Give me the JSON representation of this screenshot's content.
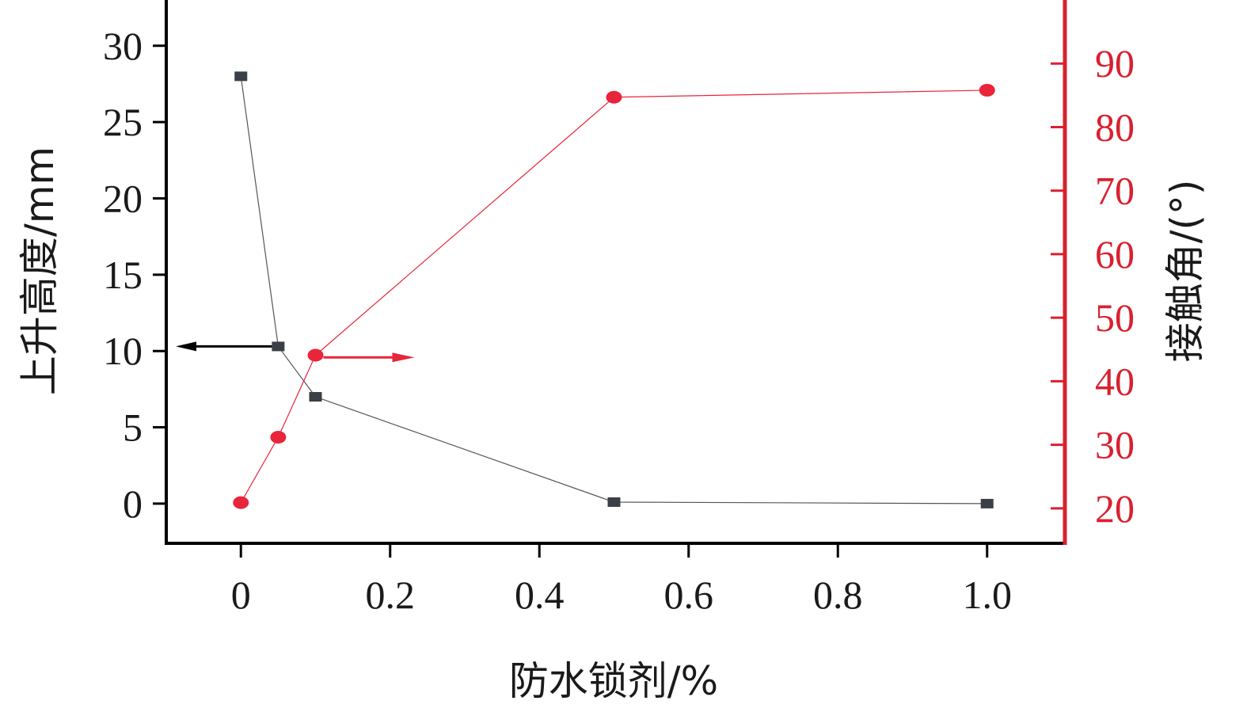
{
  "chart_data": {
    "type": "line",
    "xlabel": "防水锁剂/%",
    "ylabel_left": "上升高度/mm",
    "ylabel_right": "接触角/(°)",
    "xlim": [
      -0.1,
      1.1
    ],
    "ylim_left": [
      -2.6,
      33
    ],
    "ylim_right": [
      14.5,
      100
    ],
    "x_ticks": [
      0,
      0.2,
      0.4,
      0.6,
      0.8,
      1.0
    ],
    "x_tick_labels": [
      "0",
      "0.2",
      "0.4",
      "0.6",
      "0.8",
      "1.0"
    ],
    "y_left_ticks": [
      0,
      5,
      10,
      15,
      20,
      25,
      30
    ],
    "y_left_tick_labels": [
      "0",
      "5",
      "10",
      "15",
      "20",
      "25",
      "30"
    ],
    "y_right_ticks": [
      20,
      30,
      40,
      50,
      60,
      70,
      80,
      90
    ],
    "y_right_tick_labels": [
      "20",
      "30",
      "40",
      "50",
      "60",
      "70",
      "80",
      "90"
    ],
    "grid": false,
    "legend": "none",
    "annotations": [
      {
        "type": "arrow",
        "direction": "left",
        "points_to_axis": "left",
        "color": "#000000",
        "anchor": {
          "x": 0.05,
          "y_axis": "left",
          "y": 10.3
        }
      },
      {
        "type": "arrow",
        "direction": "right",
        "points_to_axis": "right",
        "color": "#e8253a",
        "anchor": {
          "x": 0.1,
          "y_axis": "right",
          "y": 44
        }
      }
    ],
    "series": [
      {
        "axis": "left",
        "marker": "square",
        "color": "#3b3f46",
        "line_color": "#555555",
        "x": [
          0,
          0.05,
          0.1,
          0.5,
          1.0
        ],
        "y": [
          28,
          10.3,
          7,
          0.1,
          0
        ]
      },
      {
        "axis": "right",
        "marker": "circle",
        "color": "#e8253a",
        "line_color": "#e8253a",
        "x": [
          0,
          0.05,
          0.1,
          0.5,
          1.0
        ],
        "y": [
          20.9,
          31.2,
          44.1,
          84.7,
          85.8
        ]
      }
    ]
  },
  "colors": {
    "left_axis": "#000000",
    "right_axis": "#d8212f",
    "red_series": "#e8253a",
    "black_series": "#3b3f46"
  }
}
